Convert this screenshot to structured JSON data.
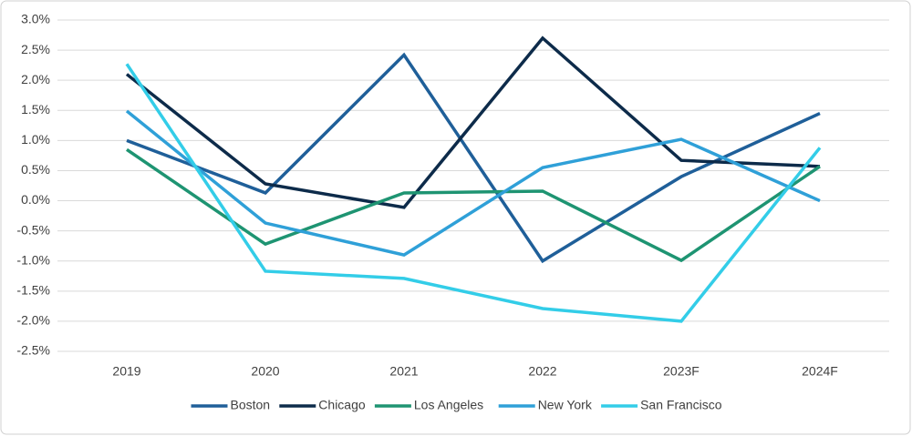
{
  "chart_data": {
    "type": "line",
    "categories": [
      "2019",
      "2020",
      "2021",
      "2022",
      "2023F",
      "2024F"
    ],
    "series": [
      {
        "name": "Boston",
        "color": "#1f5f99",
        "values": [
          1.0,
          0.13,
          2.42,
          -1.0,
          0.4,
          1.45
        ]
      },
      {
        "name": "Chicago",
        "color": "#0d2b4a",
        "values": [
          2.1,
          0.28,
          -0.11,
          2.7,
          0.67,
          0.57
        ]
      },
      {
        "name": "Los Angeles",
        "color": "#1e9472",
        "values": [
          0.85,
          -0.72,
          0.13,
          0.16,
          -0.99,
          0.57
        ]
      },
      {
        "name": "New York",
        "color": "#2fa0d8",
        "values": [
          1.49,
          -0.37,
          -0.9,
          0.55,
          1.02,
          0.0
        ]
      },
      {
        "name": "San Francisco",
        "color": "#33cde8",
        "values": [
          2.27,
          -1.17,
          -1.29,
          -1.79,
          -2.0,
          0.88
        ]
      }
    ],
    "ylim": [
      -2.5,
      3.0
    ],
    "yticks": [
      {
        "value": -2.5,
        "label": "-2.5%"
      },
      {
        "value": -2.0,
        "label": "-2.0%"
      },
      {
        "value": -1.5,
        "label": "-1.5%"
      },
      {
        "value": -1.0,
        "label": "-1.0%"
      },
      {
        "value": -0.5,
        "label": "-0.5%"
      },
      {
        "value": 0.0,
        "label": "0.0%"
      },
      {
        "value": 0.5,
        "label": "0.5%"
      },
      {
        "value": 1.0,
        "label": "1.0%"
      },
      {
        "value": 1.5,
        "label": "1.5%"
      },
      {
        "value": 2.0,
        "label": "2.0%"
      },
      {
        "value": 2.5,
        "label": "2.5%"
      },
      {
        "value": 3.0,
        "label": "3.0%"
      }
    ],
    "grid": true,
    "legend": "bottom"
  }
}
